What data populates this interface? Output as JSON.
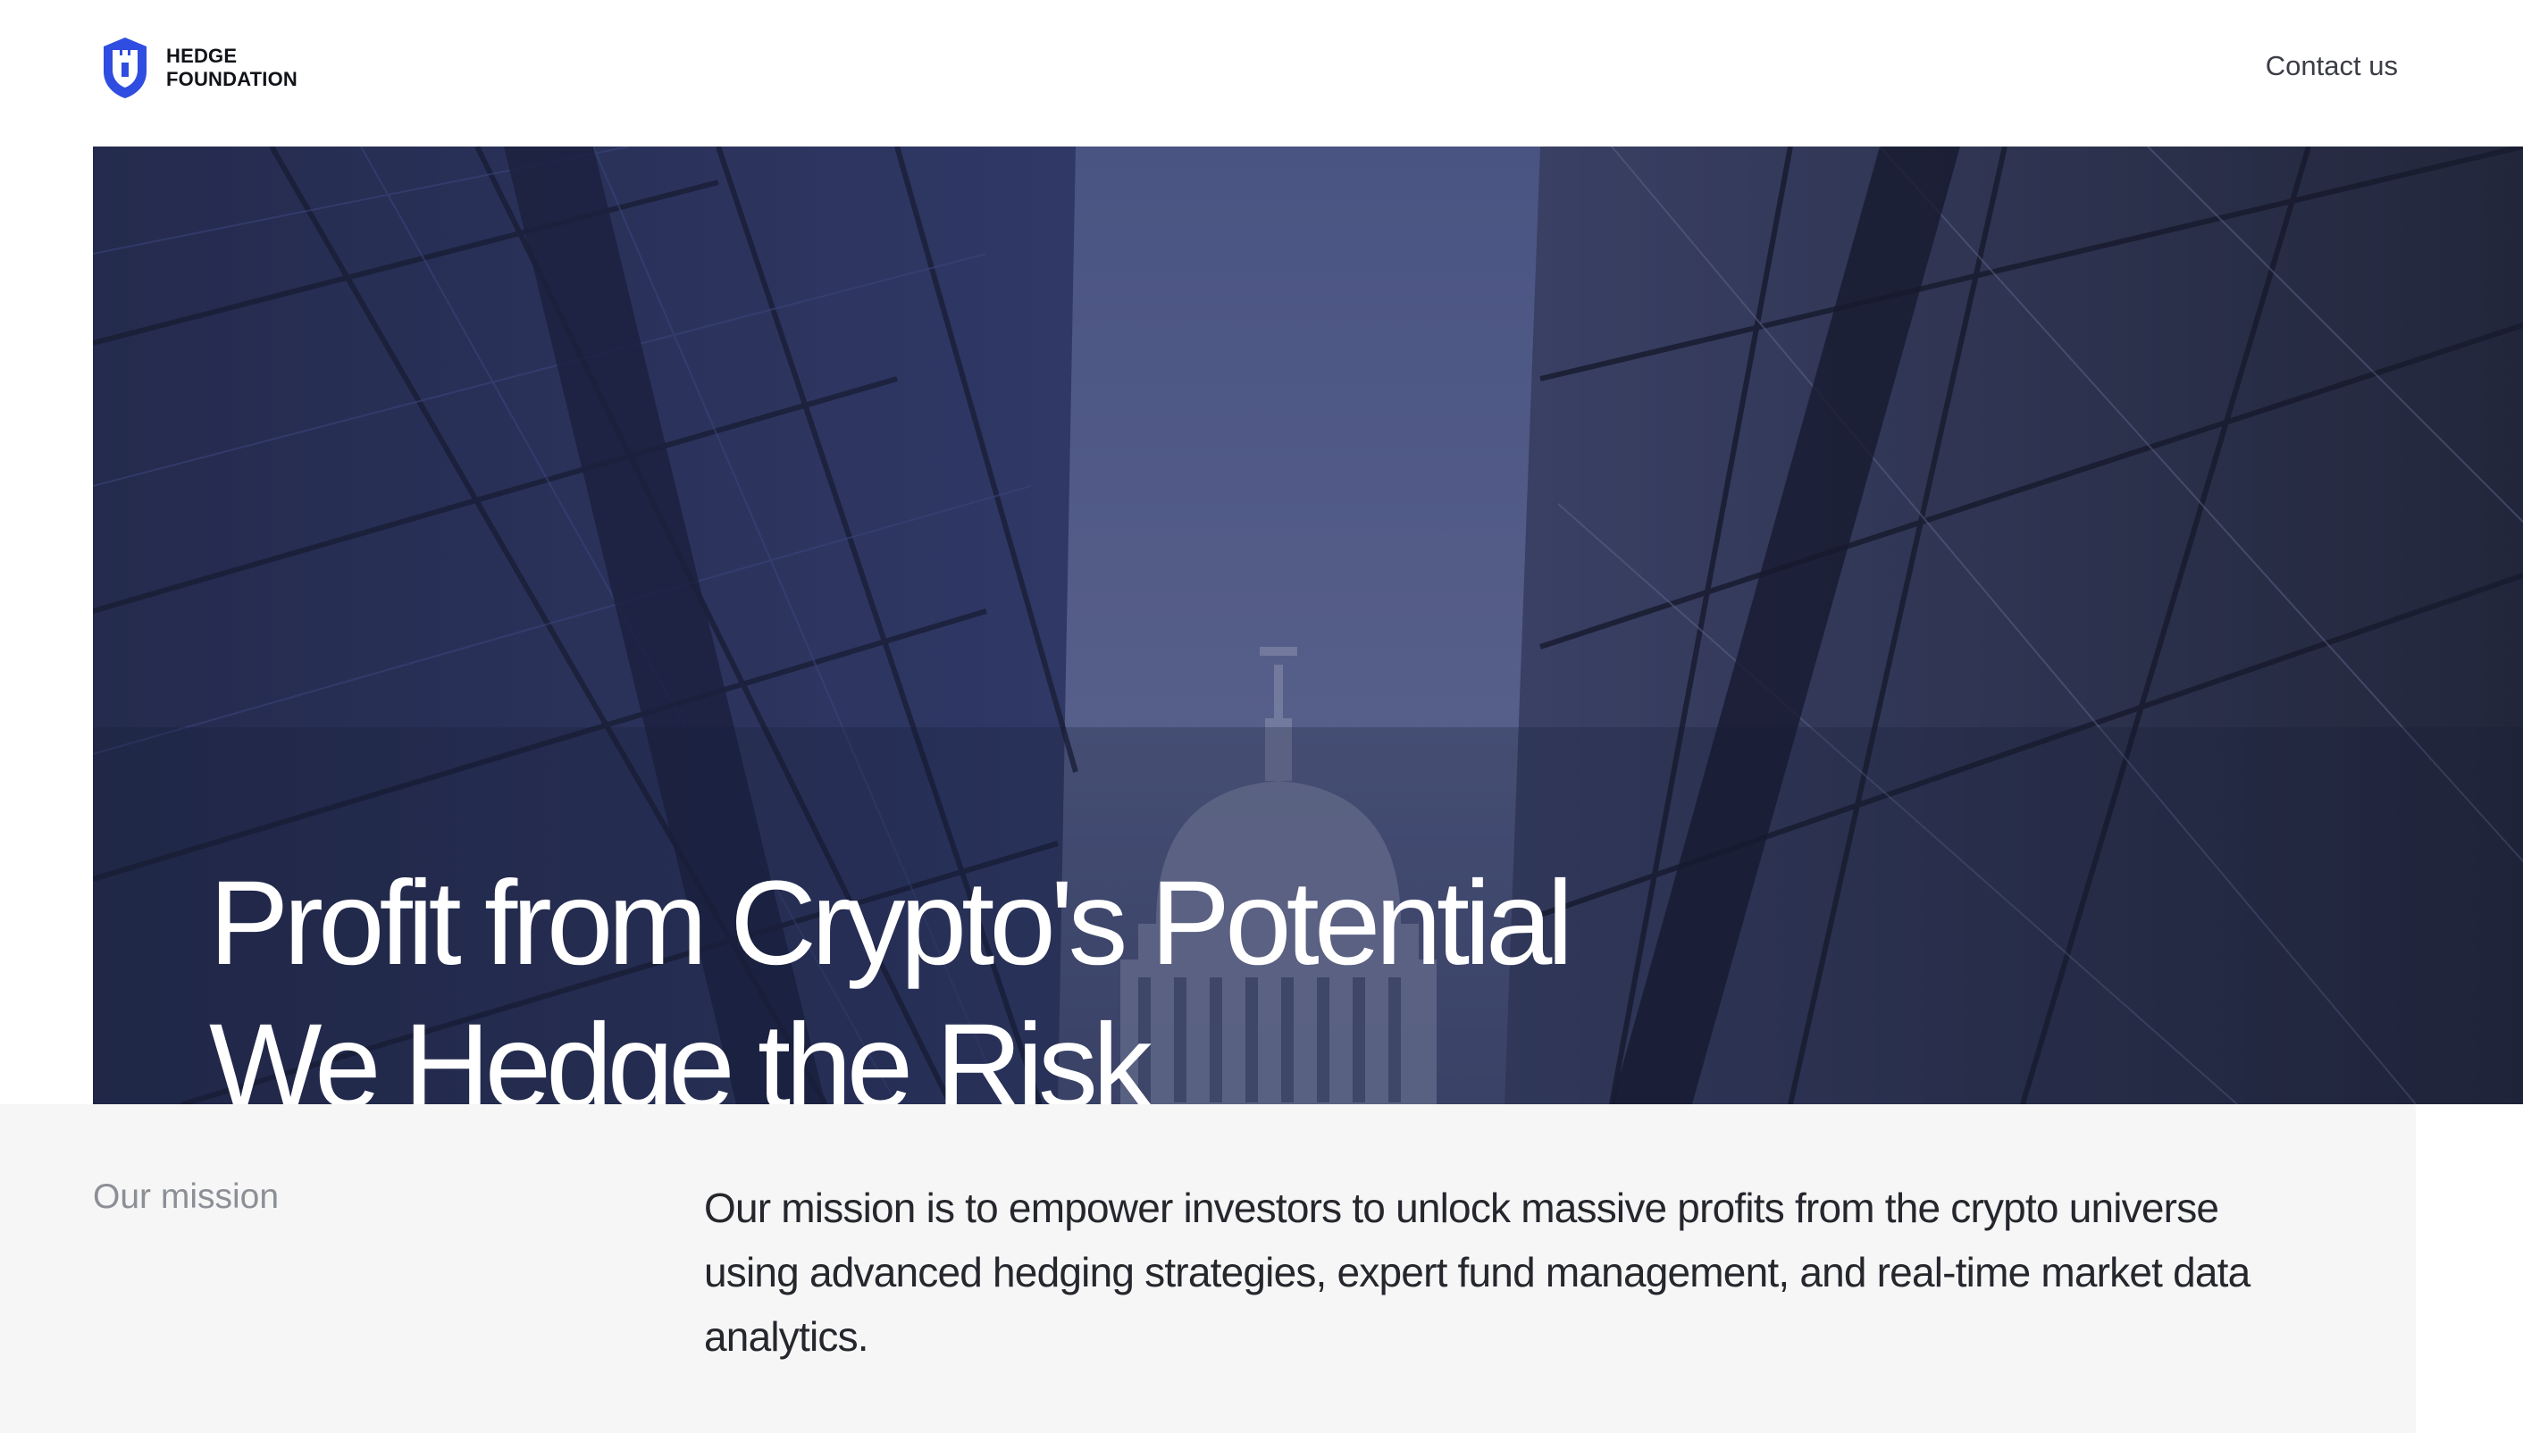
{
  "brand": {
    "line1": "HEDGE",
    "line2": "FOUNDATION",
    "logo_icon": "shield-castle-icon",
    "accent_color": "#2f4de0"
  },
  "nav": {
    "contact_label": "Contact us"
  },
  "hero": {
    "title_line1": "Profit from Crypto's Potential",
    "title_line2": "We Hedge the Risk",
    "overlay_color": "#3a4478"
  },
  "mission": {
    "label": "Our mission",
    "text": "Our mission is to empower investors to unlock massive profits from the crypto universe using advanced hedging strategies, expert fund management, and real-time market data analytics."
  }
}
